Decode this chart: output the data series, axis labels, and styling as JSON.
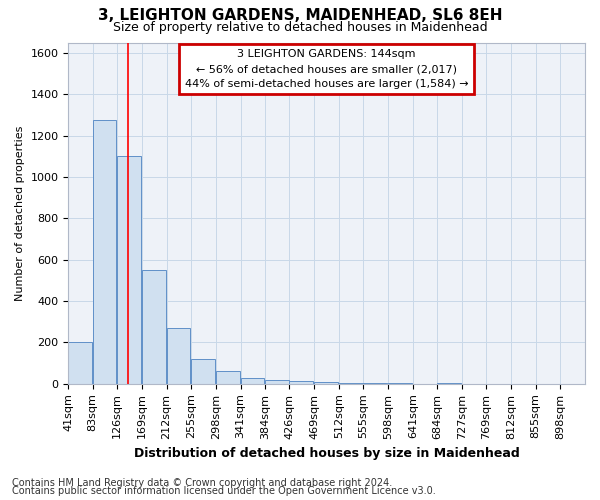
{
  "title1": "3, LEIGHTON GARDENS, MAIDENHEAD, SL6 8EH",
  "title2": "Size of property relative to detached houses in Maidenhead",
  "xlabel": "Distribution of detached houses by size in Maidenhead",
  "ylabel": "Number of detached properties",
  "footer1": "Contains HM Land Registry data © Crown copyright and database right 2024.",
  "footer2": "Contains public sector information licensed under the Open Government Licence v3.0.",
  "annotation_line1": "3 LEIGHTON GARDENS: 144sqm",
  "annotation_line2": "← 56% of detached houses are smaller (2,017)",
  "annotation_line3": "44% of semi-detached houses are larger (1,584) →",
  "bar_edges": [
    41,
    83,
    126,
    169,
    212,
    255,
    298,
    341,
    384,
    426,
    469,
    512,
    555,
    598,
    641,
    684,
    727,
    769,
    812,
    855,
    898,
    941
  ],
  "bar_heights": [
    200,
    1275,
    1100,
    550,
    270,
    120,
    60,
    30,
    20,
    12,
    8,
    6,
    5,
    5,
    0,
    3,
    0,
    0,
    0,
    0,
    0
  ],
  "bar_color": "#d0e0f0",
  "bar_edge_color": "#6090c8",
  "red_line_x": 144,
  "ylim": [
    0,
    1650
  ],
  "yticks": [
    0,
    200,
    400,
    600,
    800,
    1000,
    1200,
    1400,
    1600
  ],
  "grid_color": "#c8d8e8",
  "plot_bg_color": "#eef2f8",
  "annotation_box_color": "#cc0000",
  "background_color": "#ffffff",
  "title1_fontsize": 11,
  "title2_fontsize": 9,
  "xlabel_fontsize": 9,
  "ylabel_fontsize": 8,
  "tick_fontsize": 8,
  "annotation_fontsize": 8,
  "footer_fontsize": 7
}
